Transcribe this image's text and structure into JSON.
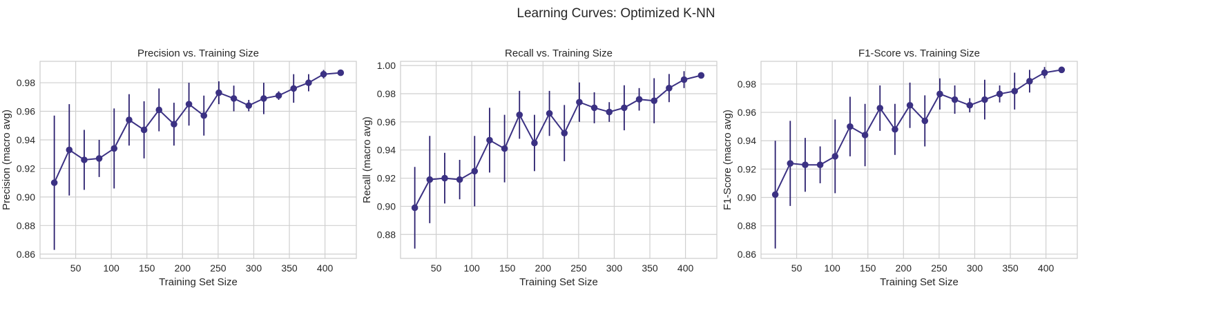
{
  "figure_title": "Learning Curves: Optimized K-NN",
  "colors": {
    "line": "#3b3183",
    "error": "#2a1f6e",
    "grid": "#cfcfcf",
    "frame": "#cccccc"
  },
  "chart_data": [
    {
      "type": "line",
      "title": "Precision vs. Training Size",
      "xlabel": "Training Set Size",
      "ylabel": "Precision (macro avg)",
      "xlim": [
        0,
        444
      ],
      "ylim": [
        0.857,
        0.995
      ],
      "xticks": [
        50,
        100,
        150,
        200,
        250,
        300,
        350,
        400
      ],
      "yticks": [
        0.86,
        0.88,
        0.9,
        0.92,
        0.94,
        0.96,
        0.98
      ],
      "grid": true,
      "x": [
        20,
        41,
        62,
        83,
        104,
        125,
        146,
        167,
        188,
        209,
        230,
        251,
        272,
        293,
        314,
        335,
        356,
        377,
        398,
        422
      ],
      "y": [
        0.91,
        0.933,
        0.926,
        0.927,
        0.934,
        0.954,
        0.947,
        0.961,
        0.951,
        0.965,
        0.957,
        0.973,
        0.969,
        0.964,
        0.969,
        0.971,
        0.976,
        0.98,
        0.986,
        0.987
      ],
      "err": [
        0.047,
        0.032,
        0.021,
        0.013,
        0.028,
        0.018,
        0.02,
        0.015,
        0.015,
        0.015,
        0.014,
        0.008,
        0.009,
        0.004,
        0.011,
        0.003,
        0.01,
        0.006,
        0.003,
        0.001
      ]
    },
    {
      "type": "line",
      "title": "Recall vs. Training Size",
      "xlabel": "Training Set Size",
      "ylabel": "Recall (macro avg)",
      "xlim": [
        0,
        444
      ],
      "ylim": [
        0.863,
        1.003
      ],
      "xticks": [
        50,
        100,
        150,
        200,
        250,
        300,
        350,
        400
      ],
      "yticks": [
        0.88,
        0.9,
        0.92,
        0.94,
        0.96,
        0.98,
        1.0
      ],
      "grid": true,
      "x": [
        20,
        41,
        62,
        83,
        104,
        125,
        146,
        167,
        188,
        209,
        230,
        251,
        272,
        293,
        314,
        335,
        356,
        377,
        398,
        422
      ],
      "y": [
        0.899,
        0.919,
        0.92,
        0.919,
        0.925,
        0.947,
        0.941,
        0.965,
        0.945,
        0.966,
        0.952,
        0.974,
        0.97,
        0.967,
        0.97,
        0.976,
        0.975,
        0.984,
        0.99,
        0.993
      ],
      "err": [
        0.029,
        0.031,
        0.018,
        0.014,
        0.025,
        0.023,
        0.024,
        0.017,
        0.02,
        0.016,
        0.02,
        0.014,
        0.011,
        0.007,
        0.016,
        0.008,
        0.016,
        0.01,
        0.006,
        0.001
      ]
    },
    {
      "type": "line",
      "title": "F1-Score vs. Training Size",
      "xlabel": "Training Set Size",
      "ylabel": "F1-Score (macro avg)",
      "xlim": [
        0,
        444
      ],
      "ylim": [
        0.857,
        0.996
      ],
      "xticks": [
        50,
        100,
        150,
        200,
        250,
        300,
        350,
        400
      ],
      "yticks": [
        0.86,
        0.88,
        0.9,
        0.92,
        0.94,
        0.96,
        0.98
      ],
      "grid": true,
      "x": [
        20,
        41,
        62,
        83,
        104,
        125,
        146,
        167,
        188,
        209,
        230,
        251,
        272,
        293,
        314,
        335,
        356,
        377,
        398,
        422
      ],
      "y": [
        0.902,
        0.924,
        0.923,
        0.923,
        0.929,
        0.95,
        0.944,
        0.963,
        0.948,
        0.965,
        0.954,
        0.973,
        0.969,
        0.965,
        0.969,
        0.973,
        0.975,
        0.982,
        0.988,
        0.99
      ],
      "err": [
        0.038,
        0.03,
        0.019,
        0.013,
        0.026,
        0.021,
        0.022,
        0.016,
        0.018,
        0.016,
        0.018,
        0.011,
        0.01,
        0.005,
        0.014,
        0.006,
        0.013,
        0.008,
        0.004,
        0.001
      ]
    }
  ]
}
